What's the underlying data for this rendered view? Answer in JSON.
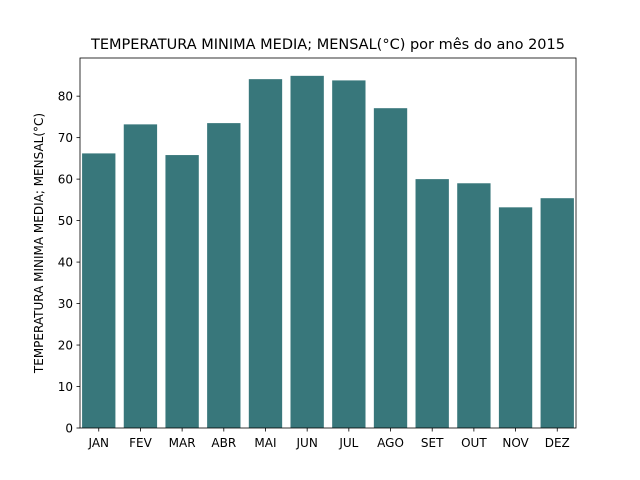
{
  "chart_data": {
    "type": "bar",
    "title": "TEMPERATURA MINIMA MEDIA; MENSAL(°C) por mês do ano 2015",
    "xlabel": "",
    "ylabel": "TEMPERATURA MINIMA MEDIA; MENSAL(°C)",
    "categories": [
      "JAN",
      "FEV",
      "MAR",
      "ABR",
      "MAI",
      "JUN",
      "JUL",
      "AGO",
      "SET",
      "OUT",
      "NOV",
      "DEZ"
    ],
    "values": [
      66.2,
      73.2,
      65.8,
      73.5,
      84.1,
      84.9,
      83.8,
      77.1,
      60.0,
      59.0,
      53.2,
      55.4
    ],
    "ylim": [
      0,
      89.2
    ],
    "yticks": [
      0,
      10,
      20,
      30,
      40,
      50,
      60,
      70,
      80
    ],
    "bar_color": "#38777b",
    "grid": false,
    "legend": "none"
  }
}
